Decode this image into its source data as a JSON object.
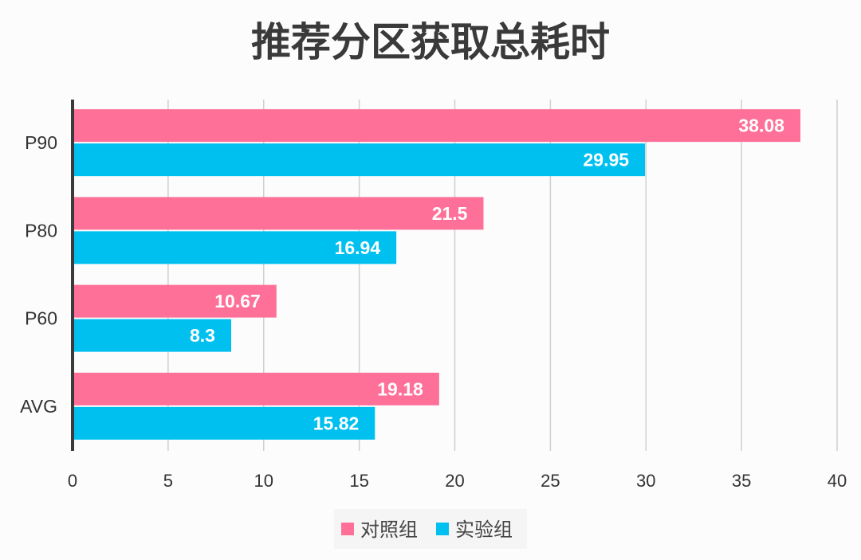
{
  "chart_data": {
    "type": "bar",
    "orientation": "horizontal",
    "title": "推荐分区获取总耗时",
    "categories": [
      "P90",
      "P80",
      "P60",
      "AVG"
    ],
    "series": [
      {
        "name": "对照组",
        "color": "#ff7099",
        "values": [
          38.08,
          21.5,
          10.67,
          19.18
        ]
      },
      {
        "name": "实验组",
        "color": "#00c0f0",
        "values": [
          29.95,
          16.94,
          8.3,
          15.82
        ]
      }
    ],
    "xlim": [
      0,
      40
    ],
    "xticks": [
      "0",
      "5",
      "10",
      "15",
      "20",
      "25",
      "30",
      "35",
      "40"
    ],
    "xlabel": "",
    "ylabel": "",
    "grid": "vertical",
    "legend": "bottom",
    "data_labels": true
  }
}
